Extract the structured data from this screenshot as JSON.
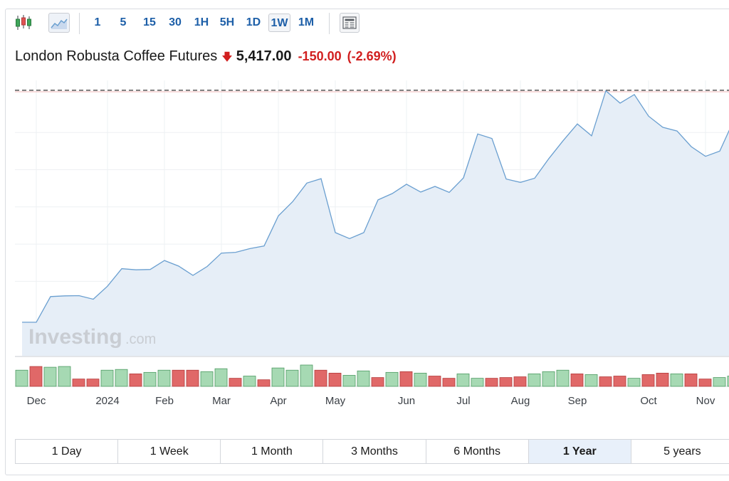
{
  "toolbar": {
    "intervals": [
      "1",
      "5",
      "15",
      "30",
      "1H",
      "5H",
      "1D",
      "1W",
      "1M"
    ],
    "active_interval": "1W"
  },
  "header": {
    "name": "London Robusta Coffee Futures",
    "price": "5,417.00",
    "change": "-150.00",
    "change_pct": "(-2.69%)",
    "direction": "down"
  },
  "watermark": {
    "main": "Investing",
    "sub": ".com"
  },
  "ranges": {
    "items": [
      "1 Day",
      "1 Week",
      "1 Month",
      "3 Months",
      "6 Months",
      "1 Year",
      "5 years"
    ],
    "active": "1 Year"
  },
  "colors": {
    "line": "#6a9fd0",
    "area": "#e6eef7",
    "volume_up": "#a6d9b3",
    "volume_down": "#e06868",
    "down_text": "#d11f1f",
    "interval_text": "#1d5fa8"
  },
  "chart_data": {
    "type": "area",
    "x": [
      "2023-11-26",
      "2023-12-03",
      "2023-12-10",
      "2023-12-17",
      "2023-12-24",
      "2023-12-31",
      "2024-01-07",
      "2024-01-14",
      "2024-01-21",
      "2024-01-28",
      "2024-02-04",
      "2024-02-11",
      "2024-02-18",
      "2024-02-25",
      "2024-03-03",
      "2024-03-10",
      "2024-03-17",
      "2024-03-24",
      "2024-03-31",
      "2024-04-07",
      "2024-04-14",
      "2024-04-21",
      "2024-04-28",
      "2024-05-05",
      "2024-05-12",
      "2024-05-19",
      "2024-05-26",
      "2024-06-02",
      "2024-06-09",
      "2024-06-16",
      "2024-06-23",
      "2024-06-30",
      "2024-07-07",
      "2024-07-14",
      "2024-07-21",
      "2024-07-28",
      "2024-08-04",
      "2024-08-11",
      "2024-08-18",
      "2024-08-25",
      "2024-09-01",
      "2024-09-08",
      "2024-09-15",
      "2024-09-22",
      "2024-09-29",
      "2024-10-06",
      "2024-10-13",
      "2024-10-20",
      "2024-10-27",
      "2024-11-03",
      "2024-11-10"
    ],
    "close": [
      2450,
      2450,
      2795,
      2805,
      2808,
      2760,
      2935,
      3170,
      3155,
      3160,
      3280,
      3205,
      3080,
      3200,
      3380,
      3390,
      3440,
      3475,
      3880,
      4070,
      4320,
      4380,
      3655,
      3575,
      3655,
      4095,
      4180,
      4305,
      4200,
      4275,
      4195,
      4390,
      4980,
      4920,
      4375,
      4330,
      4385,
      4650,
      4890,
      5115,
      4955,
      5560,
      5395,
      5510,
      5220,
      5070,
      5020,
      4810,
      4680,
      4750,
      5170
    ],
    "volume_direction": [
      "up",
      "down",
      "up",
      "up",
      "down",
      "down",
      "up",
      "up",
      "down",
      "up",
      "up",
      "down",
      "down",
      "up",
      "up",
      "down",
      "up",
      "down",
      "up",
      "up",
      "up",
      "down",
      "down",
      "up",
      "up",
      "down",
      "up",
      "down",
      "up",
      "down",
      "down",
      "up",
      "up",
      "down",
      "down",
      "down",
      "up",
      "up",
      "up",
      "down",
      "up",
      "down",
      "down",
      "up",
      "down",
      "down",
      "up",
      "down",
      "down",
      "up",
      "up"
    ],
    "volume": [
      22,
      27,
      26,
      27,
      10,
      10,
      22,
      23,
      17,
      19,
      22,
      22,
      22,
      20,
      24,
      11,
      14,
      9,
      25,
      22,
      29,
      22,
      18,
      15,
      21,
      12,
      19,
      20,
      18,
      14,
      11,
      17,
      11,
      11,
      12,
      13,
      17,
      20,
      22,
      17,
      16,
      13,
      14,
      11,
      16,
      18,
      17,
      17,
      10,
      12,
      14
    ],
    "xlabels": [
      "Dec",
      "2024",
      "Feb",
      "Mar",
      "Apr",
      "May",
      "Jun",
      "Jul",
      "Aug",
      "Sep",
      "Oct",
      "Nov"
    ],
    "ylim": [
      2000,
      5700
    ],
    "reference_line": 5567,
    "grid": true
  }
}
